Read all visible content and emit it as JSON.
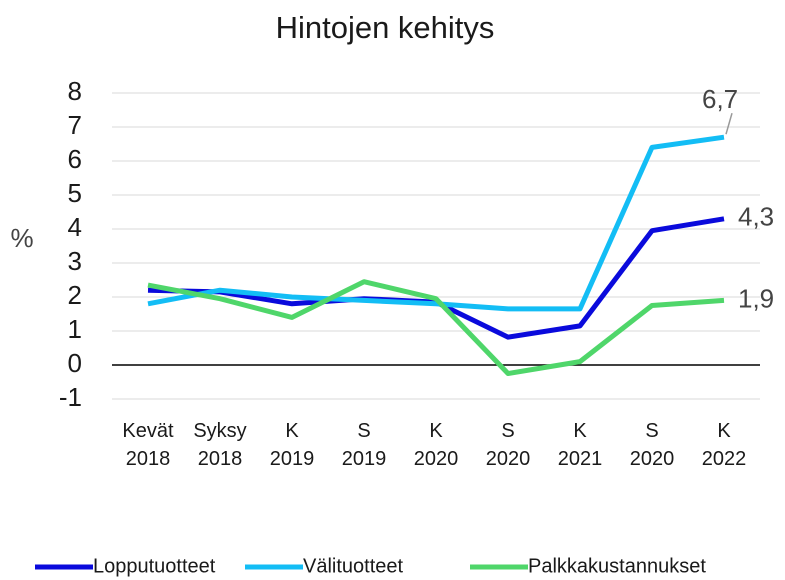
{
  "chart_data": {
    "type": "line",
    "title": "Hintojen kehitys",
    "y_label": "%",
    "categories": [
      "Kevät 2018",
      "Syksy 2018",
      "K 2019",
      "S 2019",
      "K 2020",
      "S 2020",
      "K 2021",
      "S 2020",
      "K 2022"
    ],
    "series": [
      {
        "name": "Lopputuotteet",
        "color": "#0a0adc",
        "values": [
          2.2,
          2.15,
          1.8,
          1.95,
          1.85,
          0.82,
          1.15,
          3.95,
          4.3
        ],
        "value_labels": [
          null,
          null,
          null,
          null,
          null,
          null,
          null,
          null,
          "4,3"
        ]
      },
      {
        "name": "Välituotteet",
        "color": "#13bdf5",
        "values": [
          1.8,
          2.2,
          2.0,
          1.9,
          1.8,
          1.65,
          1.65,
          6.4,
          6.7
        ],
        "value_labels": [
          null,
          null,
          null,
          null,
          null,
          null,
          null,
          null,
          "6,7"
        ]
      },
      {
        "name": "Palkkakustannukset",
        "color": "#4fd66a",
        "values": [
          2.35,
          1.95,
          1.4,
          2.45,
          1.95,
          -0.25,
          0.1,
          1.75,
          1.9
        ],
        "value_labels": [
          null,
          null,
          null,
          null,
          null,
          null,
          null,
          null,
          "1,9"
        ]
      }
    ],
    "ylim": [
      -1,
      8
    ],
    "yticks": [
      -1,
      0,
      1,
      2,
      3,
      4,
      5,
      6,
      7,
      8
    ],
    "grid": true,
    "legend": "bottom"
  }
}
